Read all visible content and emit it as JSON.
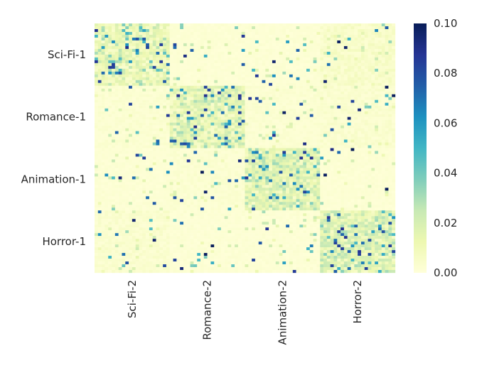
{
  "chart_data": {
    "type": "heatmap",
    "title": "",
    "xlabel": "",
    "ylabel": "",
    "y_tick_labels": [
      "Sci-Fi-1",
      "Romance-1",
      "Animation-1",
      "Horror-1"
    ],
    "x_tick_labels": [
      "Sci-Fi-2",
      "Romance-2",
      "Animation-2",
      "Horror-2"
    ],
    "blocks": {
      "rows": [
        "Sci-Fi-1",
        "Romance-1",
        "Animation-1",
        "Horror-1"
      ],
      "cols": [
        "Sci-Fi-2",
        "Romance-2",
        "Animation-2",
        "Horror-2"
      ],
      "approx_mean_values": [
        [
          0.012,
          0.002,
          0.002,
          0.006
        ],
        [
          0.003,
          0.014,
          0.003,
          0.004
        ],
        [
          0.002,
          0.003,
          0.016,
          0.002
        ],
        [
          0.004,
          0.002,
          0.002,
          0.018
        ]
      ]
    },
    "colorbar": {
      "colormap": "YlGnBu",
      "min": 0.0,
      "max": 0.1,
      "ticks": [
        "0.00",
        "0.02",
        "0.04",
        "0.06",
        "0.08",
        "0.10"
      ]
    },
    "grid": false
  }
}
